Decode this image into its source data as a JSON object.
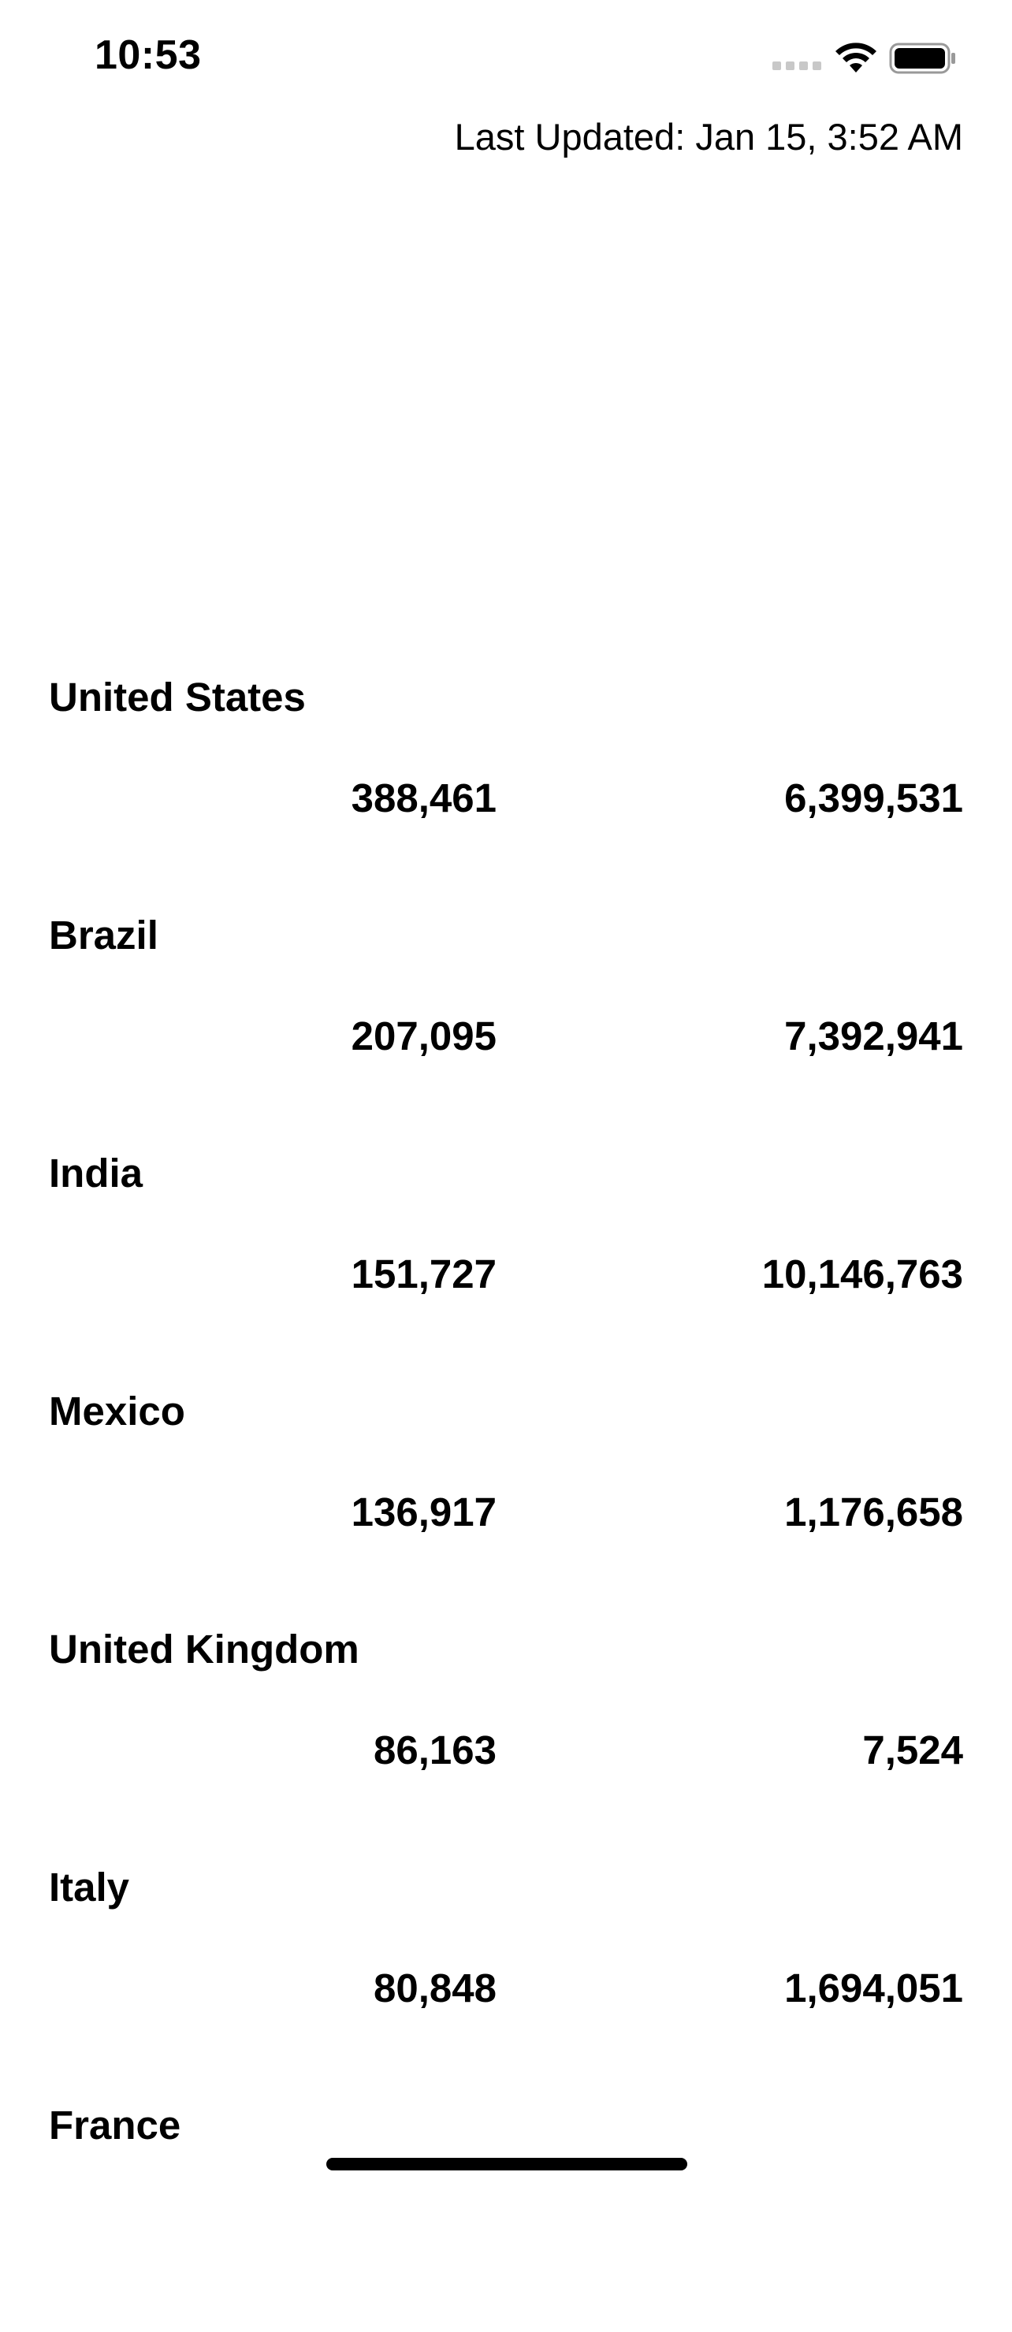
{
  "status_bar": {
    "time": "10:53",
    "icons": [
      "signal-icon",
      "wifi-icon",
      "battery-icon"
    ]
  },
  "header": {
    "last_updated": "Last Updated: Jan 15, 3:52 AM"
  },
  "countries": [
    {
      "name": "United States",
      "value1": "388,461",
      "value2": "6,399,531"
    },
    {
      "name": "Brazil",
      "value1": "207,095",
      "value2": "7,392,941"
    },
    {
      "name": "India",
      "value1": "151,727",
      "value2": "10,146,763"
    },
    {
      "name": "Mexico",
      "value1": "136,917",
      "value2": "1,176,658"
    },
    {
      "name": "United Kingdom",
      "value1": "86,163",
      "value2": "7,524"
    },
    {
      "name": "Italy",
      "value1": "80,848",
      "value2": "1,694,051"
    },
    {
      "name": "France",
      "value1": "",
      "value2": ""
    }
  ]
}
